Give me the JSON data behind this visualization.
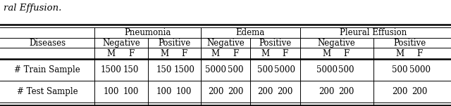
{
  "title_text": "ral Effusion.",
  "bg_color": "#ffffff",
  "text_color": "#000000",
  "fontsize": 8.5,
  "group_headers": [
    "Pneumonia",
    "Edema",
    "Pleural Effusion"
  ],
  "neg_pos": [
    "Negative",
    "Positive"
  ],
  "mf": [
    "M",
    "F"
  ],
  "diseases_label": "Diseases",
  "train_label": "# Train Sample",
  "test_label": "# Test Sample",
  "train_vals": [
    [
      "1500",
      "150"
    ],
    [
      "150",
      "1500"
    ],
    [
      "5000",
      "500"
    ],
    [
      "500",
      "5000"
    ],
    [
      "5000",
      "500"
    ],
    [
      "500",
      "5000"
    ]
  ],
  "test_vals": [
    [
      "100",
      "100"
    ],
    [
      "100",
      "100"
    ],
    [
      "200",
      "200"
    ],
    [
      "200",
      "200"
    ],
    [
      "200",
      "200"
    ],
    [
      "200",
      "200"
    ]
  ]
}
